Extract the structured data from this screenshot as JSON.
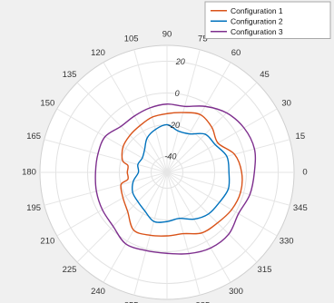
{
  "chart_data": {
    "type": "polar-line",
    "title": "",
    "angle_ticks": [
      0,
      15,
      30,
      45,
      60,
      75,
      90,
      105,
      120,
      135,
      150,
      165,
      180,
      195,
      210,
      225,
      240,
      255,
      270,
      285,
      300,
      315,
      330,
      345
    ],
    "angle_tick_labels": [
      "0",
      "15",
      "30",
      "45",
      "60",
      "75",
      "90",
      "105",
      "120",
      "135",
      "150",
      "165",
      "180",
      "195",
      "210",
      "225",
      "240",
      "255",
      "270",
      "285",
      "300",
      "315",
      "330",
      "345"
    ],
    "angle_direction": "counterclockwise",
    "angle_zero_location": "right",
    "r_ticks": [
      -40,
      -20,
      0,
      20
    ],
    "r_tick_labels": [
      "-40",
      "-20",
      "0",
      "20"
    ],
    "rlim": [
      -50,
      30
    ],
    "grid": true,
    "legend_position": "top-right",
    "legend": [
      "Configuration 1",
      "Configuration 2",
      "Configuration 3"
    ],
    "series": [
      {
        "name": "Configuration 1",
        "color": "#d95319",
        "theta": [
          0,
          15,
          30,
          45,
          60,
          75,
          90,
          105,
          120,
          135,
          150,
          165,
          170,
          180,
          190,
          195,
          210,
          225,
          240,
          255,
          270,
          285,
          300,
          315,
          330,
          345
        ],
        "r": [
          -3,
          -6,
          -13,
          -10,
          -8,
          -11,
          -13,
          -14,
          -16,
          -17,
          -18,
          -21,
          -25,
          -25,
          -25,
          -20,
          -18,
          -15,
          -8,
          -9,
          -10,
          -10,
          -6,
          -5,
          -3,
          -2
        ]
      },
      {
        "name": "Configuration 2",
        "color": "#0072bd",
        "theta": [
          0,
          15,
          30,
          45,
          60,
          75,
          90,
          105,
          120,
          135,
          150,
          165,
          180,
          195,
          210,
          225,
          240,
          255,
          270,
          285,
          300,
          315,
          330,
          345
        ],
        "r": [
          -11,
          -11,
          -15,
          -16,
          -22,
          -23,
          -20,
          -22,
          -25,
          -30,
          -32,
          -31,
          -32,
          -28,
          -25,
          -24,
          -22,
          -18,
          -19,
          -20,
          -16,
          -13,
          -12,
          -10
        ]
      },
      {
        "name": "Configuration 3",
        "color": "#7e2f8e",
        "theta": [
          0,
          15,
          30,
          45,
          60,
          75,
          90,
          105,
          120,
          135,
          150,
          165,
          180,
          195,
          210,
          225,
          240,
          255,
          270,
          285,
          300,
          315,
          330,
          345
        ],
        "r": [
          5,
          7,
          6,
          3,
          -2,
          -7,
          -7,
          -8,
          -9,
          -9,
          -5,
          -5,
          -5,
          -4,
          -3,
          -2,
          2,
          1,
          1,
          3,
          5,
          5,
          2,
          4
        ]
      }
    ]
  }
}
